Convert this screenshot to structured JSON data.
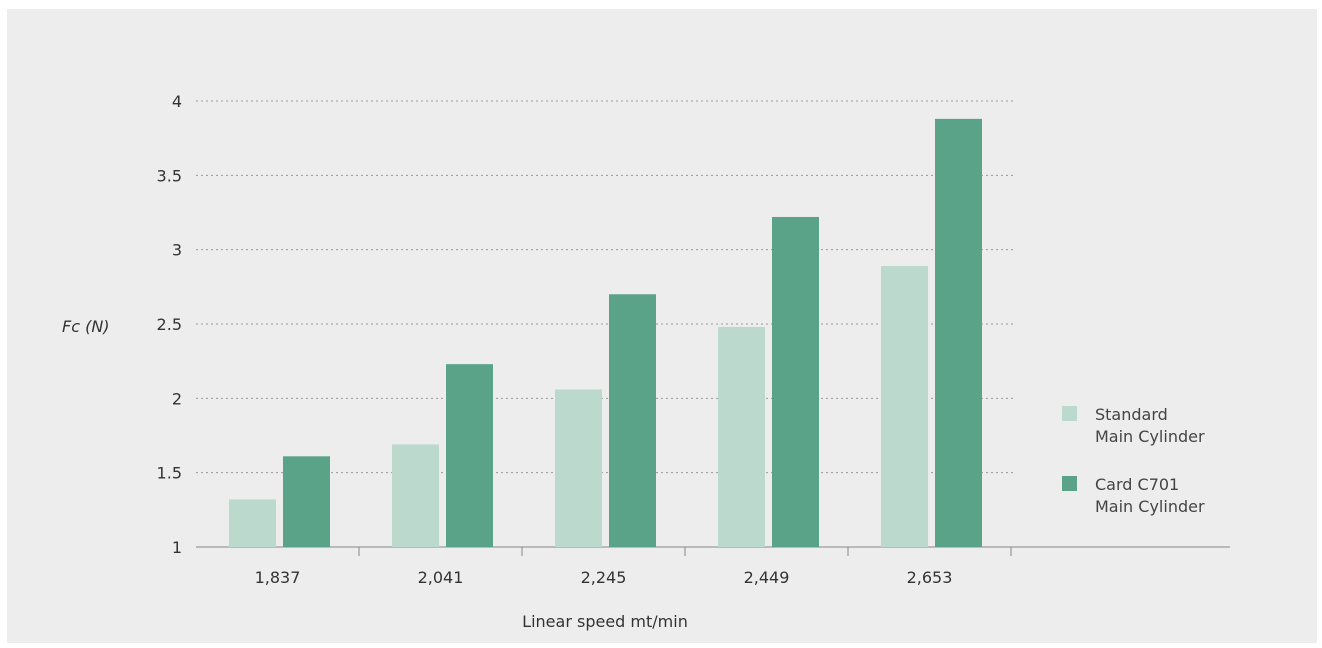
{
  "chart_data": {
    "type": "bar",
    "categories": [
      "1,837",
      "2,041",
      "2,245",
      "2,449",
      "2,653"
    ],
    "series": [
      {
        "name": "Standard Main Cylinder",
        "legend_lines": [
          "Standard",
          "Main Cylinder"
        ],
        "color": "#bcd9cd",
        "values": [
          1.32,
          1.69,
          2.06,
          2.48,
          2.89
        ]
      },
      {
        "name": "Card C701 Main Cylinder",
        "legend_lines": [
          "Card C701",
          "Main Cylinder"
        ],
        "color": "#5aa389",
        "values": [
          1.61,
          2.23,
          2.7,
          3.22,
          3.88
        ]
      }
    ],
    "xlabel": "Linear speed mt/min",
    "ylabel": "Fc (N)",
    "ylim": [
      1,
      4
    ],
    "yticks": [
      "1",
      "1.5",
      "2",
      "2.5",
      "3",
      "3.5",
      "4"
    ],
    "grid": true,
    "legend_position": "right"
  }
}
